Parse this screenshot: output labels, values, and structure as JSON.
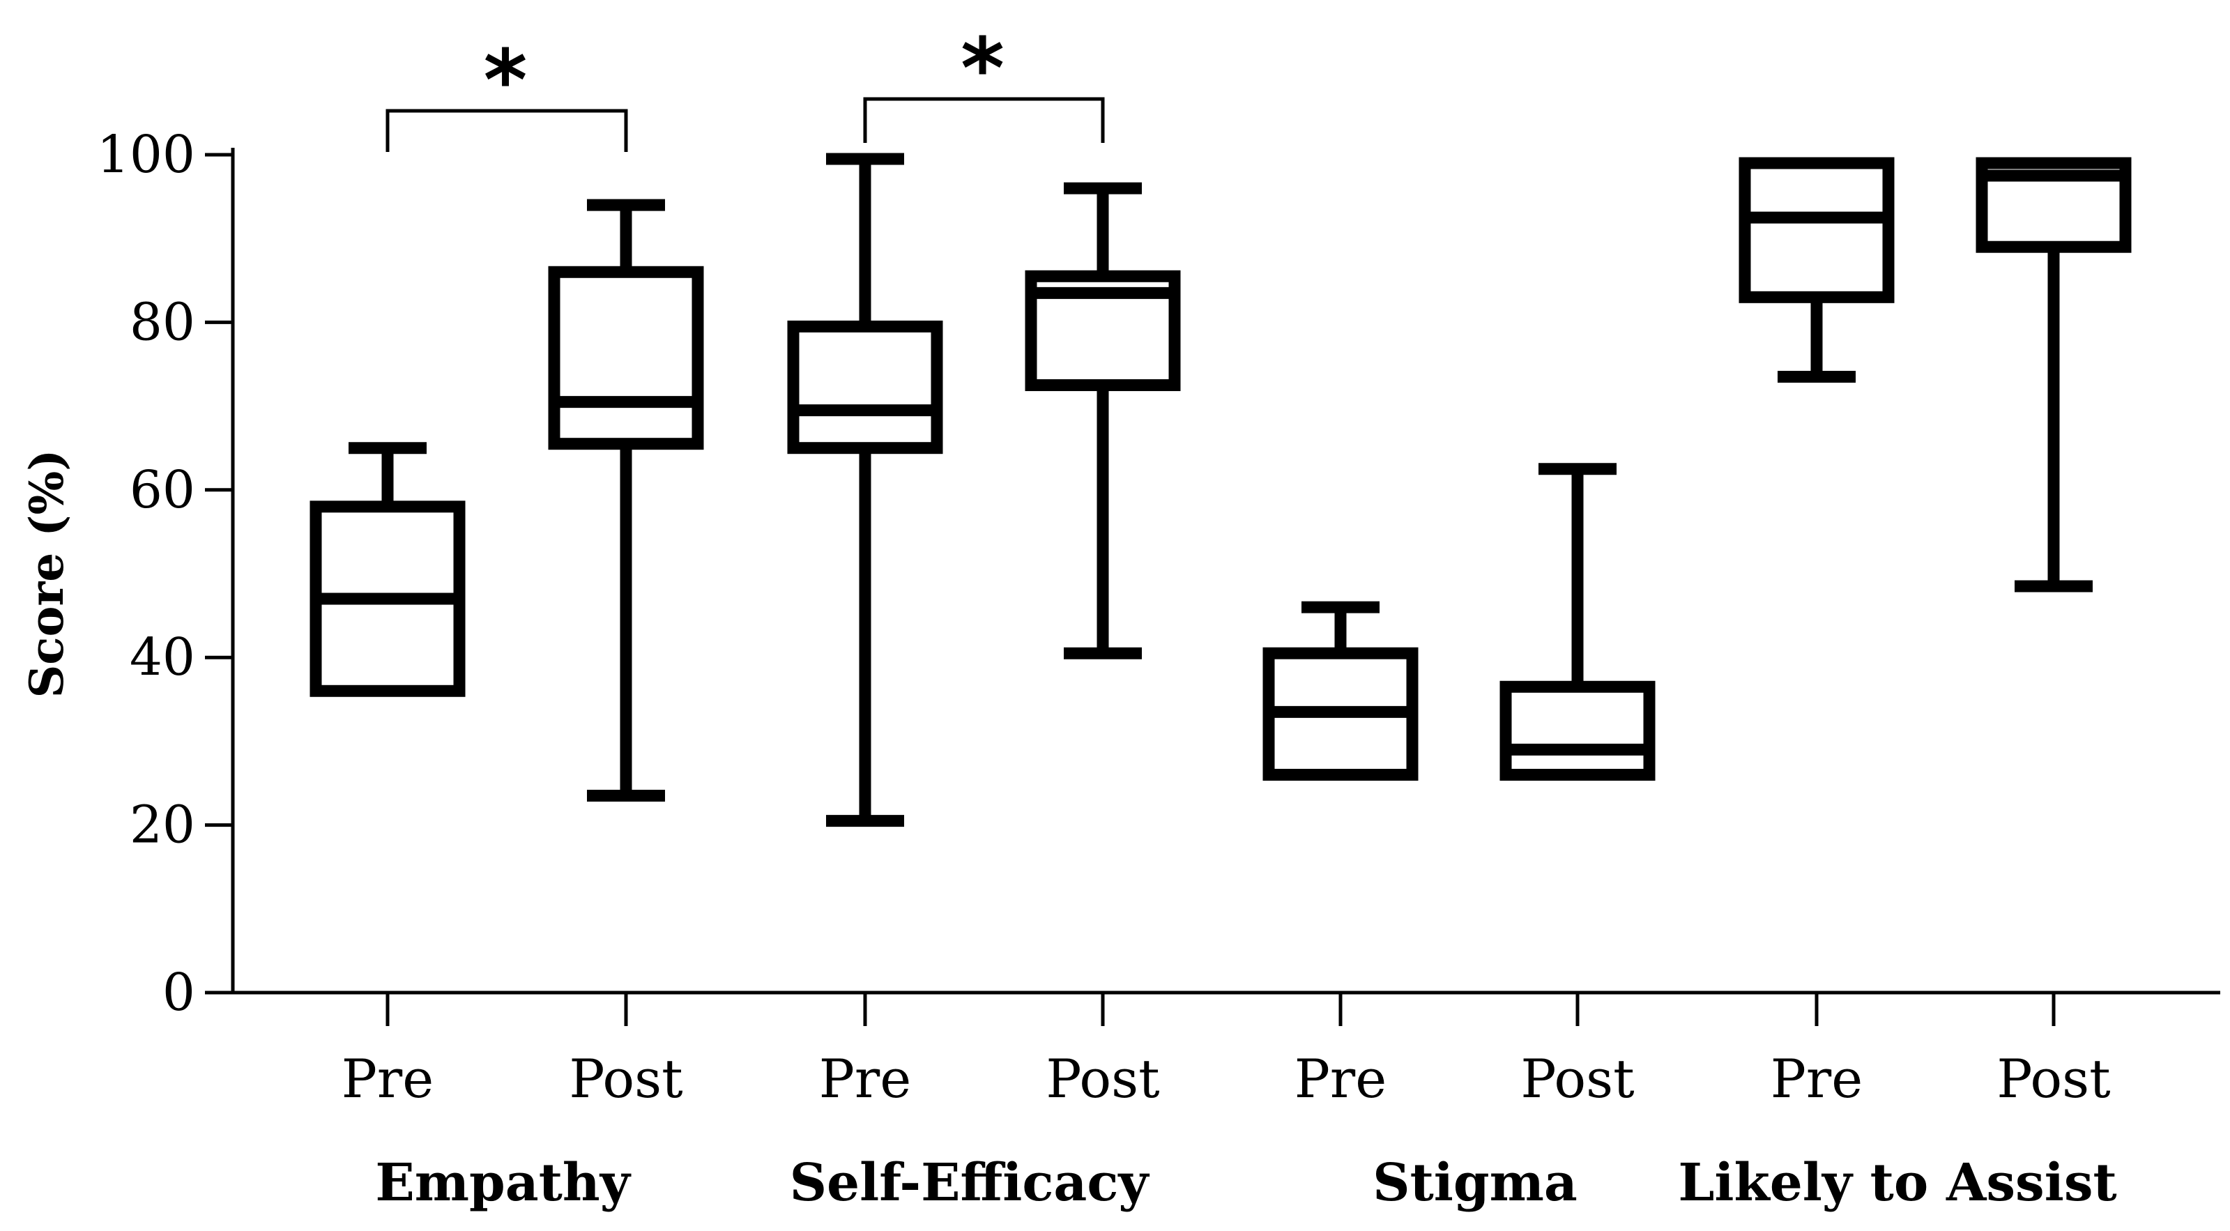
{
  "chart_data": {
    "type": "box",
    "ylabel": "Score (%)",
    "ylim": [
      0,
      100
    ],
    "yticks": [
      0,
      20,
      40,
      60,
      80,
      100
    ],
    "grid": false,
    "groups": [
      {
        "name": "Empathy",
        "boxes": [
          {
            "label": "Pre",
            "min": 36,
            "q1": 36,
            "median": 47,
            "q3": 58,
            "max": 65
          },
          {
            "label": "Post",
            "min": 23.5,
            "q1": 65.5,
            "median": 70.5,
            "q3": 86,
            "max": 94
          }
        ],
        "significance": "*"
      },
      {
        "name": "Self-Efficacy",
        "boxes": [
          {
            "label": "Pre",
            "min": 20.5,
            "q1": 65,
            "median": 69.5,
            "q3": 79.5,
            "max": 99.5
          },
          {
            "label": "Post",
            "min": 40.5,
            "q1": 72.5,
            "median": 83.5,
            "q3": 85.5,
            "max": 96
          }
        ],
        "significance": "*"
      },
      {
        "name": "Stigma",
        "boxes": [
          {
            "label": "Pre",
            "min": 26,
            "q1": 26,
            "median": 33.5,
            "q3": 40.5,
            "max": 46
          },
          {
            "label": "Post",
            "min": 26,
            "q1": 26,
            "median": 29,
            "q3": 36.5,
            "max": 62.5
          }
        ],
        "significance": ""
      },
      {
        "name": "Likely to Assist",
        "boxes": [
          {
            "label": "Pre",
            "min": 73.5,
            "q1": 83,
            "median": 92.5,
            "q3": 99,
            "max": 99
          },
          {
            "label": "Post",
            "min": 48.5,
            "q1": 89,
            "median": 97.5,
            "q3": 99,
            "max": 99
          }
        ],
        "significance": ""
      }
    ]
  }
}
